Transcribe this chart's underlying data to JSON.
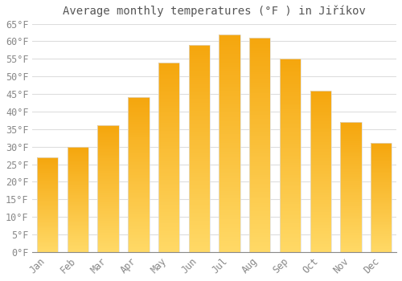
{
  "title": "Average monthly temperatures (°F ) in Jiříkov",
  "months": [
    "Jan",
    "Feb",
    "Mar",
    "Apr",
    "May",
    "Jun",
    "Jul",
    "Aug",
    "Sep",
    "Oct",
    "Nov",
    "Dec"
  ],
  "values": [
    27,
    30,
    36,
    44,
    54,
    59,
    62,
    61,
    55,
    46,
    37,
    31
  ],
  "bar_color_top": "#F5A800",
  "bar_color_bottom": "#FFD060",
  "bar_edge_color": "#DDDDDD",
  "background_color": "#FFFFFF",
  "grid_color": "#DDDDDD",
  "text_color": "#888888",
  "ylim": [
    0,
    65
  ],
  "yticks": [
    0,
    5,
    10,
    15,
    20,
    25,
    30,
    35,
    40,
    45,
    50,
    55,
    60,
    65
  ],
  "title_fontsize": 10,
  "tick_fontsize": 8.5,
  "figsize": [
    5.0,
    3.5
  ],
  "dpi": 100
}
